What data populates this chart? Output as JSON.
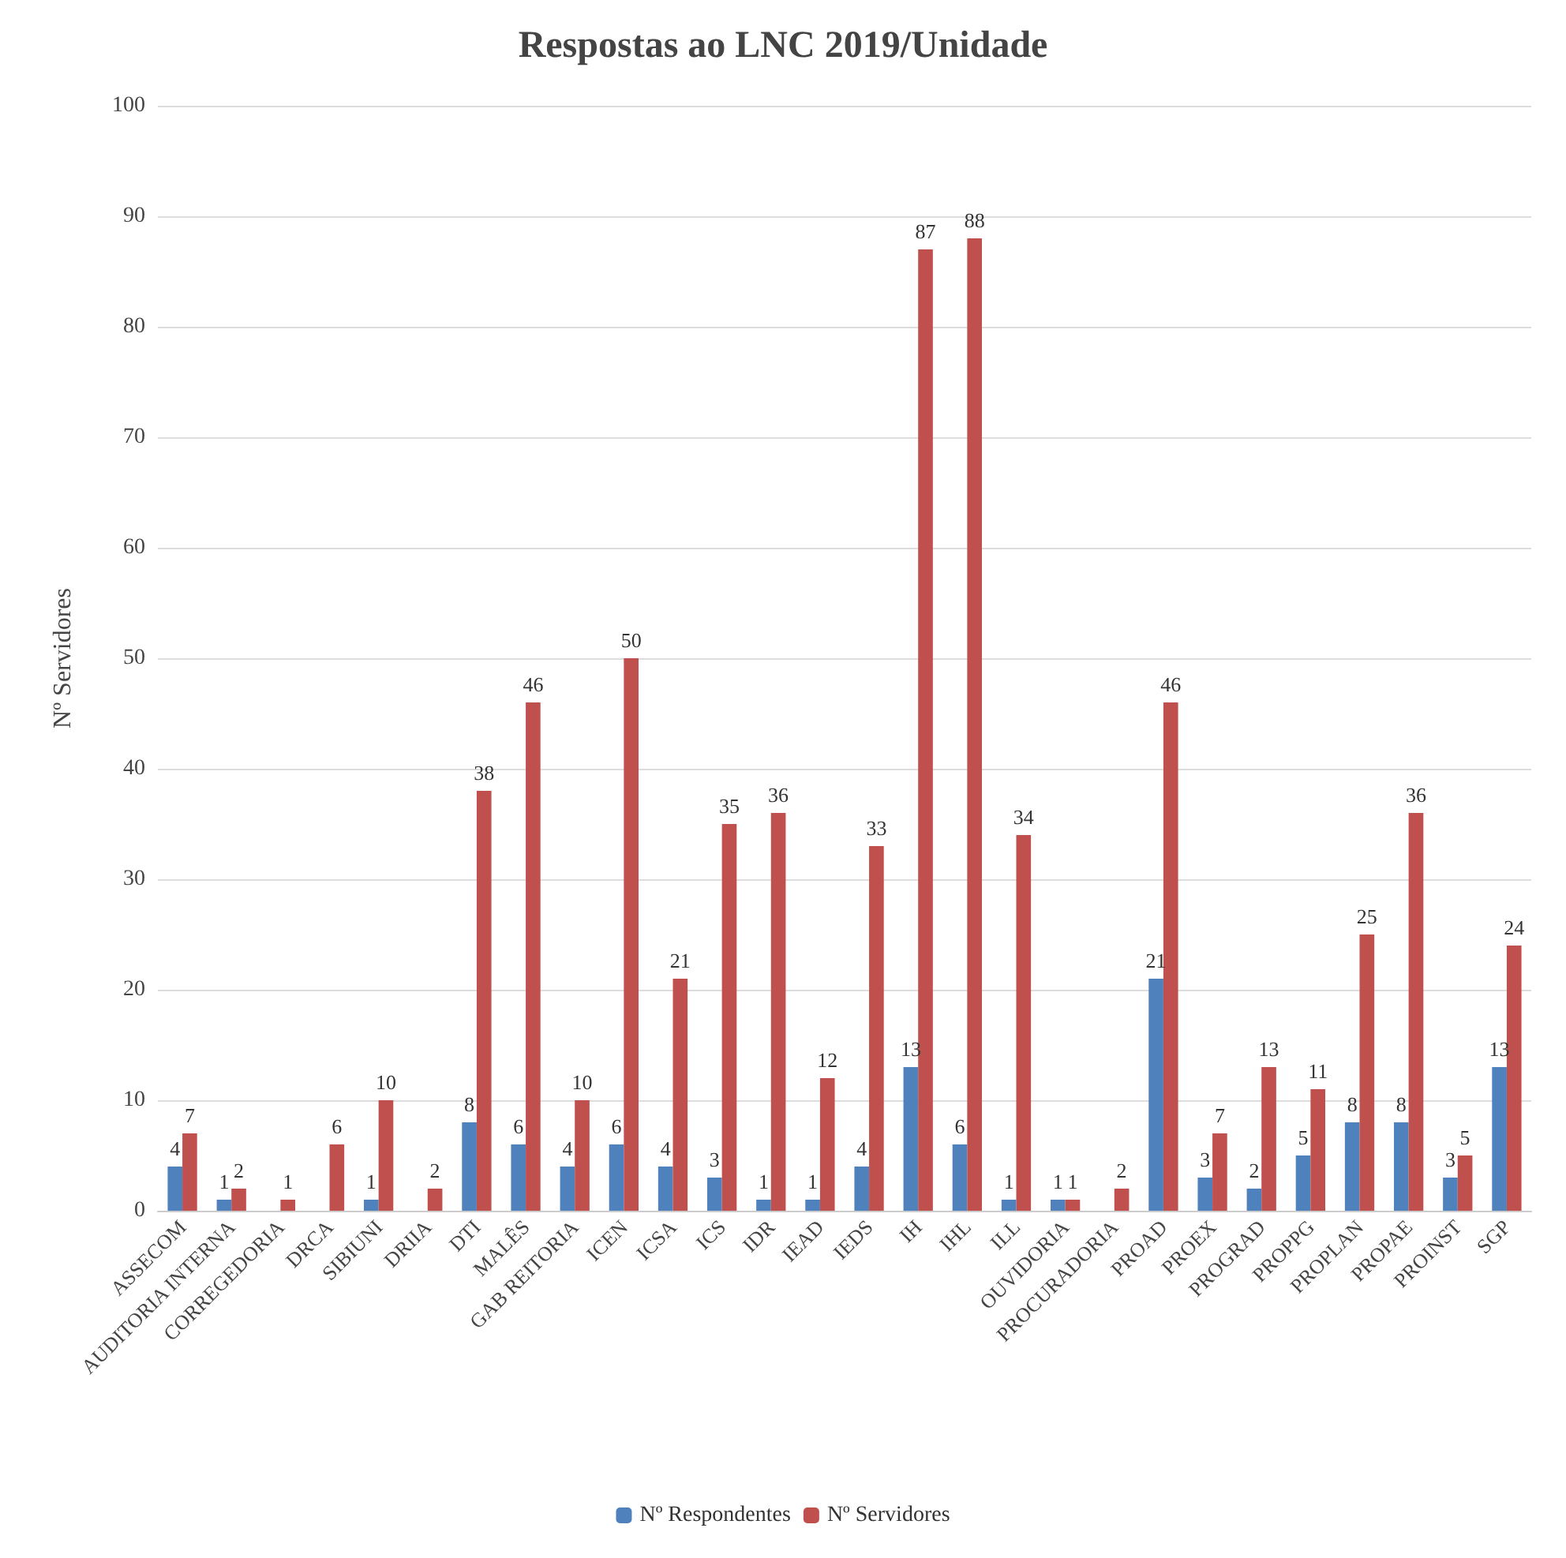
{
  "chart_data": {
    "type": "bar",
    "title": "Respostas ao LNC 2019/Unidade",
    "ylabel": "Nº Servidores",
    "categories": [
      "ASSECOM",
      "AUDITORIA INTERNA",
      "CORREGEDORIA",
      "DRCA",
      "SIBIUNI",
      "DRIIA",
      "DTI",
      "MALÊS",
      "GAB REITORIA",
      "ICEN",
      "ICSA",
      "ICS",
      "IDR",
      "IEAD",
      "IEDS",
      "IH",
      "IHL",
      "ILL",
      "OUVIDORIA",
      "PROCURADORIA",
      "PROAD",
      "PROEX",
      "PROGRAD",
      "PROPPG",
      "PROPLAN",
      "PROPAE",
      "PROINST",
      "SGP"
    ],
    "series": [
      {
        "name": "Nº Respondentes",
        "color": "#4f81bd",
        "values": [
          4,
          1,
          null,
          null,
          1,
          null,
          8,
          6,
          4,
          6,
          4,
          3,
          1,
          1,
          4,
          13,
          6,
          1,
          1,
          null,
          21,
          3,
          2,
          5,
          8,
          8,
          3,
          13
        ]
      },
      {
        "name": "Nº Servidores",
        "color": "#c0504d",
        "values": [
          7,
          2,
          1,
          6,
          10,
          2,
          38,
          46,
          10,
          50,
          21,
          35,
          36,
          12,
          33,
          87,
          88,
          34,
          1,
          2,
          46,
          7,
          13,
          11,
          25,
          36,
          5,
          24
        ]
      }
    ],
    "ylim": [
      0,
      100
    ],
    "yticks": [
      0,
      10,
      20,
      30,
      40,
      50,
      60,
      70,
      80,
      90,
      100
    ],
    "grid": "y",
    "legend": "bottom",
    "data_labels": true
  }
}
